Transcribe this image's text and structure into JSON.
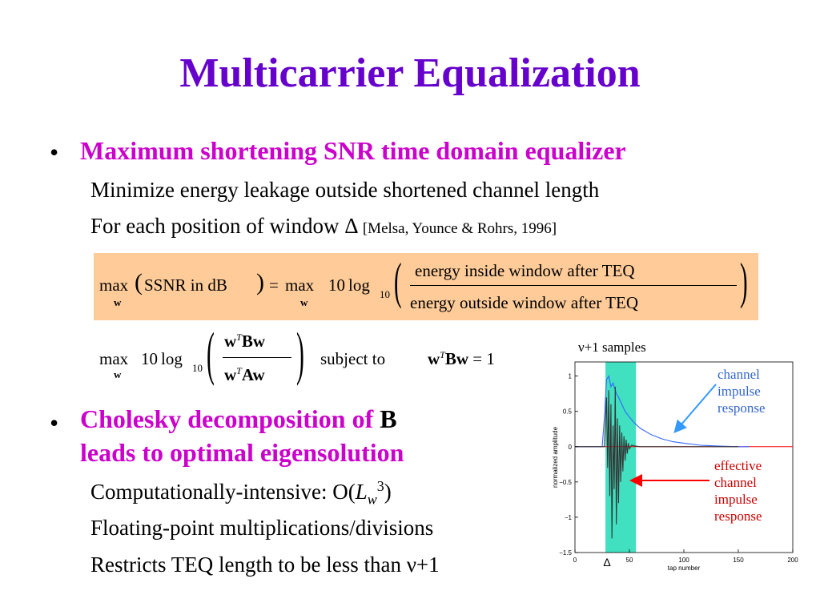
{
  "slide": {
    "title": "Multicarrier Equalization",
    "bullet1": "Maximum shortening SNR time domain equalizer",
    "b1_sub1": "Minimize energy leakage outside shortened channel length",
    "b1_sub2": "For each position of window Δ",
    "b1_cite": "[Melsa, Younce & Rohrs, 1996]",
    "eq1": {
      "max": "max",
      "w": "w",
      "lhs": "SSNR in dB",
      "equals": "=",
      "ten": "10",
      "log": "log",
      "base": "10",
      "numerator": "energy   inside   window   after   TEQ",
      "denominator": "energy   outside   window   after   TEQ"
    },
    "eq2": {
      "max": "max",
      "w": "w",
      "ten": "10",
      "log": "log",
      "base": "10",
      "num_w": "w",
      "num_T": "T",
      "num_B": "Bw",
      "den_w": "w",
      "den_T": "T",
      "den_A": "Aw",
      "subject_to": "subject to",
      "c_w": "w",
      "c_T": "T",
      "c_B": "Bw",
      "c_eq": "= 1"
    },
    "bullet2_a": "Cholesky decomposition of",
    "bullet2_b": "B",
    "bullet2_c": "leads to optimal eigensolution",
    "b2_sub1_a": "Computationally-intensive: O(",
    "b2_sub1_L": "L",
    "b2_sub1_w": "w",
    "b2_sub1_3": "3",
    "b2_sub1_close": ")",
    "b2_sub2": "Floating-point multiplications/divisions",
    "b2_sub3": "Restricts TEQ length to be less than ν+1"
  },
  "chart_data": {
    "type": "line",
    "top_label": "ν+1 samples",
    "ylabel": "normalized amplitude",
    "xlabel": "tap number",
    "xlim": [
      0,
      200
    ],
    "ylim": [
      -1.5,
      1.2
    ],
    "xticks": [
      "0",
      "50",
      "100",
      "150",
      "200"
    ],
    "yticks": [
      "1",
      "0.5",
      "0",
      "−0.5",
      "−1",
      "−1.5"
    ],
    "delta_label": "Δ",
    "window": [
      28,
      56
    ],
    "annotation_channel": [
      "channel",
      "impulse",
      "response"
    ],
    "annotation_effective": [
      "effective",
      "channel",
      "impulse",
      "response"
    ],
    "colors": {
      "channel": "#3366ff",
      "effective": "#333333",
      "zero_line": "#ff0000",
      "window": "#40e0c0",
      "arrow_blue": "#3399ff",
      "arrow_red": "#ff0000"
    },
    "series": [
      {
        "x": [
          0,
          25,
          27,
          29,
          31,
          33,
          35,
          38,
          40,
          43,
          46,
          50,
          55,
          60,
          70,
          80,
          90,
          100,
          115,
          130,
          150,
          160
        ],
        "values": [
          0,
          0,
          0.4,
          0.95,
          1.0,
          0.85,
          0.9,
          0.75,
          0.7,
          0.6,
          0.5,
          0.42,
          0.33,
          0.26,
          0.17,
          0.11,
          0.07,
          0.05,
          0.02,
          0.01,
          0.0,
          0.0
        ]
      },
      {
        "x": [
          0,
          27,
          29,
          30,
          31,
          32,
          33,
          34,
          35,
          36,
          37,
          38,
          39,
          40,
          41,
          42,
          43,
          44,
          45,
          46,
          47,
          48,
          49,
          50,
          52,
          55,
          60,
          70,
          80,
          100,
          150
        ],
        "values": [
          0,
          0,
          0.7,
          -0.3,
          0.8,
          -0.7,
          0.6,
          -1.3,
          0.3,
          -0.6,
          0.85,
          -1.1,
          0.4,
          -0.8,
          0.3,
          -0.5,
          0.2,
          -0.35,
          0.15,
          -0.2,
          0.1,
          -0.1,
          0.05,
          -0.03,
          0.02,
          0.01,
          0.0,
          0.0,
          0.0,
          0.0,
          0.0
        ]
      }
    ]
  }
}
